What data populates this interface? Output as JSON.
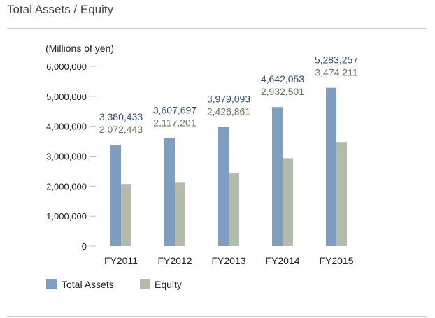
{
  "page": {
    "title": "Total Assets / Equity"
  },
  "colors": {
    "total_assets": "#7f9fc2",
    "equity": "#b3bbaa",
    "total_label": "#2a4f70",
    "equity_label": "#5e7a4f"
  },
  "chart_data": {
    "type": "bar",
    "unit_label": "(Millions of yen)",
    "categories": [
      "FY2011",
      "FY2012",
      "FY2013",
      "FY2014",
      "FY2015"
    ],
    "series": [
      {
        "name": "Total Assets",
        "values": [
          3380433,
          3607697,
          3979093,
          4642053,
          5283257
        ],
        "labels": [
          "3,380,433",
          "3,607,697",
          "3,979,093",
          "4,642,053",
          "5,283,257"
        ]
      },
      {
        "name": "Equity",
        "values": [
          2072443,
          2117201,
          2426861,
          2932501,
          3474211
        ],
        "labels": [
          "2,072,443",
          "2,117,201",
          "2,426,861",
          "2,932,501",
          "3,474,211"
        ]
      }
    ],
    "ylim": [
      0,
      6000000
    ],
    "yticks": [
      0,
      1000000,
      2000000,
      3000000,
      4000000,
      5000000,
      6000000
    ],
    "ytick_labels": [
      "0",
      "1,000,000",
      "2,000,000",
      "3,000,000",
      "4,000,000",
      "5,000,000",
      "6,000,000"
    ],
    "legend": {
      "placement": "bottom-left",
      "items": [
        "Total Assets",
        "Equity"
      ]
    },
    "grid": false
  }
}
